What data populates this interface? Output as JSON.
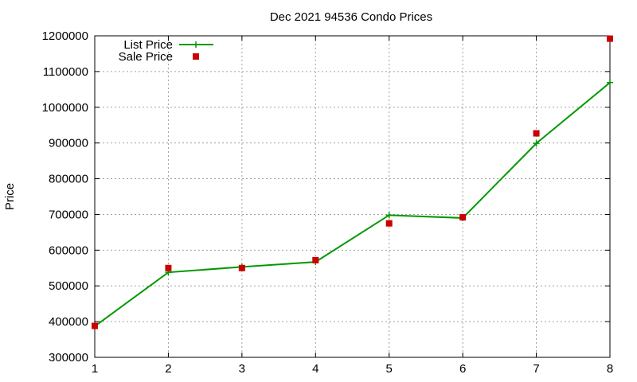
{
  "chart_data": {
    "type": "line",
    "title": "Dec 2021 94536 Condo Prices",
    "xlabel": "",
    "ylabel": "Price",
    "xlim": [
      1,
      8
    ],
    "ylim": [
      300000,
      1200000
    ],
    "xticks": [
      1,
      2,
      3,
      4,
      5,
      6,
      7,
      8
    ],
    "yticks": [
      300000,
      400000,
      500000,
      600000,
      700000,
      800000,
      900000,
      1000000,
      1100000,
      1200000
    ],
    "grid": true,
    "legend_position": "top-left",
    "series": [
      {
        "name": "List Price",
        "style": "line+cross",
        "color": "#009900",
        "x": [
          1,
          2,
          3,
          4,
          5,
          6,
          7,
          8
        ],
        "y": [
          387000,
          538000,
          553000,
          567000,
          698000,
          690000,
          899000,
          1069000
        ]
      },
      {
        "name": "Sale Price",
        "style": "square-marker",
        "color": "#cc0000",
        "x": [
          1,
          2,
          3,
          4,
          5,
          6,
          7,
          8
        ],
        "y": [
          388000,
          550000,
          550000,
          572000,
          675000,
          692000,
          927000,
          1192000
        ]
      }
    ]
  }
}
